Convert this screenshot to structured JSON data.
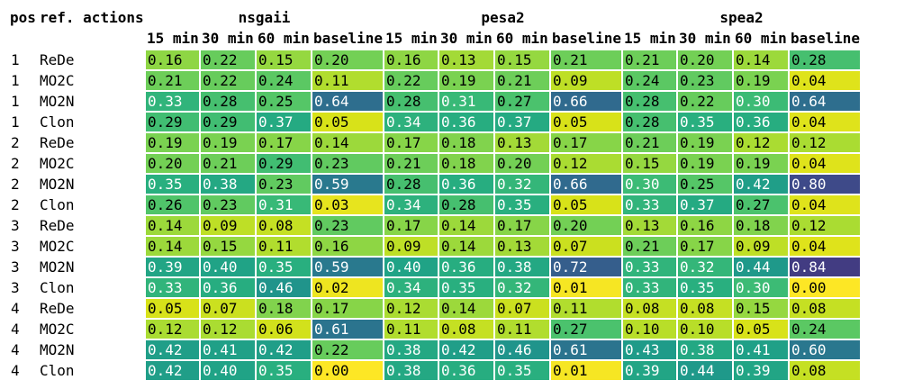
{
  "row_header": {
    "pos": "pos",
    "ref": "ref.",
    "actions": "actions"
  },
  "chart_data": {
    "type": "table",
    "title": "",
    "groups": [
      "nsgaii",
      "pesa2",
      "spea2"
    ],
    "columns": [
      "15 min",
      "30 min",
      "60 min",
      "baseline"
    ],
    "color_scale": "viridis (low = yellow, high = purple)",
    "rows": [
      {
        "pos": "1",
        "ref": "ReDe",
        "values": [
          0.16,
          0.22,
          0.15,
          0.2,
          0.16,
          0.13,
          0.15,
          0.21,
          0.21,
          0.2,
          0.14,
          0.28
        ]
      },
      {
        "pos": "1",
        "ref": "MO2C",
        "values": [
          0.21,
          0.22,
          0.24,
          0.11,
          0.22,
          0.19,
          0.21,
          0.09,
          0.24,
          0.23,
          0.19,
          0.04
        ]
      },
      {
        "pos": "1",
        "ref": "MO2N",
        "values": [
          0.33,
          0.28,
          0.25,
          0.64,
          0.28,
          0.31,
          0.27,
          0.66,
          0.28,
          0.22,
          0.3,
          0.64
        ]
      },
      {
        "pos": "1",
        "ref": "Clon",
        "values": [
          0.29,
          0.29,
          0.37,
          0.05,
          0.34,
          0.36,
          0.37,
          0.05,
          0.28,
          0.35,
          0.36,
          0.04
        ]
      },
      {
        "pos": "2",
        "ref": "ReDe",
        "values": [
          0.19,
          0.19,
          0.17,
          0.14,
          0.17,
          0.18,
          0.13,
          0.17,
          0.21,
          0.19,
          0.12,
          0.12
        ]
      },
      {
        "pos": "2",
        "ref": "MO2C",
        "values": [
          0.2,
          0.21,
          0.29,
          0.23,
          0.21,
          0.18,
          0.2,
          0.12,
          0.15,
          0.19,
          0.19,
          0.04
        ]
      },
      {
        "pos": "2",
        "ref": "MO2N",
        "values": [
          0.35,
          0.38,
          0.23,
          0.59,
          0.28,
          0.36,
          0.32,
          0.66,
          0.3,
          0.25,
          0.42,
          0.8
        ]
      },
      {
        "pos": "2",
        "ref": "Clon",
        "values": [
          0.26,
          0.23,
          0.31,
          0.03,
          0.34,
          0.28,
          0.35,
          0.05,
          0.33,
          0.37,
          0.27,
          0.04
        ]
      },
      {
        "pos": "3",
        "ref": "ReDe",
        "values": [
          0.14,
          0.09,
          0.08,
          0.23,
          0.17,
          0.14,
          0.17,
          0.2,
          0.13,
          0.16,
          0.18,
          0.12
        ]
      },
      {
        "pos": "3",
        "ref": "MO2C",
        "values": [
          0.14,
          0.15,
          0.11,
          0.16,
          0.09,
          0.14,
          0.13,
          0.07,
          0.21,
          0.17,
          0.09,
          0.04
        ]
      },
      {
        "pos": "3",
        "ref": "MO2N",
        "values": [
          0.39,
          0.4,
          0.35,
          0.59,
          0.4,
          0.36,
          0.38,
          0.72,
          0.33,
          0.32,
          0.44,
          0.84
        ]
      },
      {
        "pos": "3",
        "ref": "Clon",
        "values": [
          0.33,
          0.36,
          0.46,
          0.02,
          0.34,
          0.35,
          0.32,
          0.01,
          0.33,
          0.35,
          0.3,
          0.0
        ]
      },
      {
        "pos": "4",
        "ref": "ReDe",
        "values": [
          0.05,
          0.07,
          0.18,
          0.17,
          0.12,
          0.14,
          0.07,
          0.11,
          0.08,
          0.08,
          0.15,
          0.08
        ]
      },
      {
        "pos": "4",
        "ref": "MO2C",
        "values": [
          0.12,
          0.12,
          0.06,
          0.61,
          0.11,
          0.08,
          0.11,
          0.27,
          0.1,
          0.1,
          0.05,
          0.24
        ]
      },
      {
        "pos": "4",
        "ref": "MO2N",
        "values": [
          0.42,
          0.41,
          0.42,
          0.22,
          0.38,
          0.42,
          0.46,
          0.61,
          0.43,
          0.38,
          0.41,
          0.6
        ]
      },
      {
        "pos": "4",
        "ref": "Clon",
        "values": [
          0.42,
          0.4,
          0.35,
          0.0,
          0.38,
          0.36,
          0.35,
          0.01,
          0.39,
          0.44,
          0.39,
          0.08
        ]
      }
    ]
  }
}
